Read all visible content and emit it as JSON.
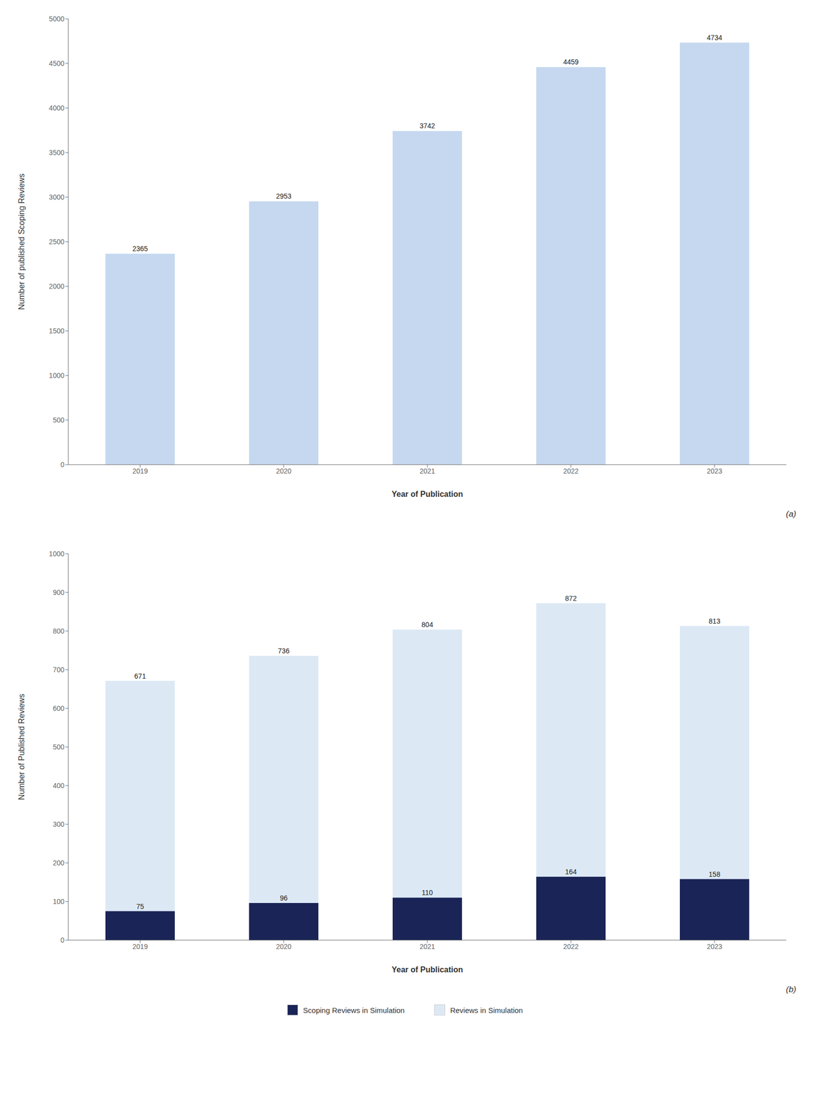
{
  "chart_data": [
    {
      "type": "bar",
      "xlabel": "Year of Publication",
      "ylabel": "Number of published Scoping Reviews",
      "annotations": [
        "(a)"
      ],
      "categories": [
        "2019",
        "2020",
        "2021",
        "2022",
        "2023"
      ],
      "values": [
        2365,
        2953,
        3742,
        4459,
        4734
      ],
      "color": "#c5d8f0",
      "ylim": [
        0,
        5000
      ],
      "yticks": [
        0,
        500,
        1000,
        1500,
        2000,
        2500,
        3000,
        3500,
        4000,
        4500,
        5000
      ],
      "grid": false,
      "data_labels": true
    },
    {
      "type": "bar",
      "xlabel": "Year of Publication",
      "ylabel": "Number of Published Reviews",
      "annotations": [
        "(b)"
      ],
      "categories": [
        "2019",
        "2020",
        "2021",
        "2022",
        "2023"
      ],
      "series": [
        {
          "name": "Scoping Reviews in Simulation",
          "color": "#1a2456",
          "values": [
            75,
            96,
            110,
            164,
            158
          ]
        },
        {
          "name": "Reviews in Simulation",
          "color": "#dce9f5",
          "values": [
            671,
            736,
            804,
            872,
            813
          ]
        }
      ],
      "ylim": [
        0,
        1000
      ],
      "yticks": [
        0,
        100,
        200,
        300,
        400,
        500,
        600,
        700,
        800,
        900,
        1000
      ],
      "grid": false,
      "data_labels": true,
      "stacked": false,
      "legend": "bottom"
    }
  ]
}
